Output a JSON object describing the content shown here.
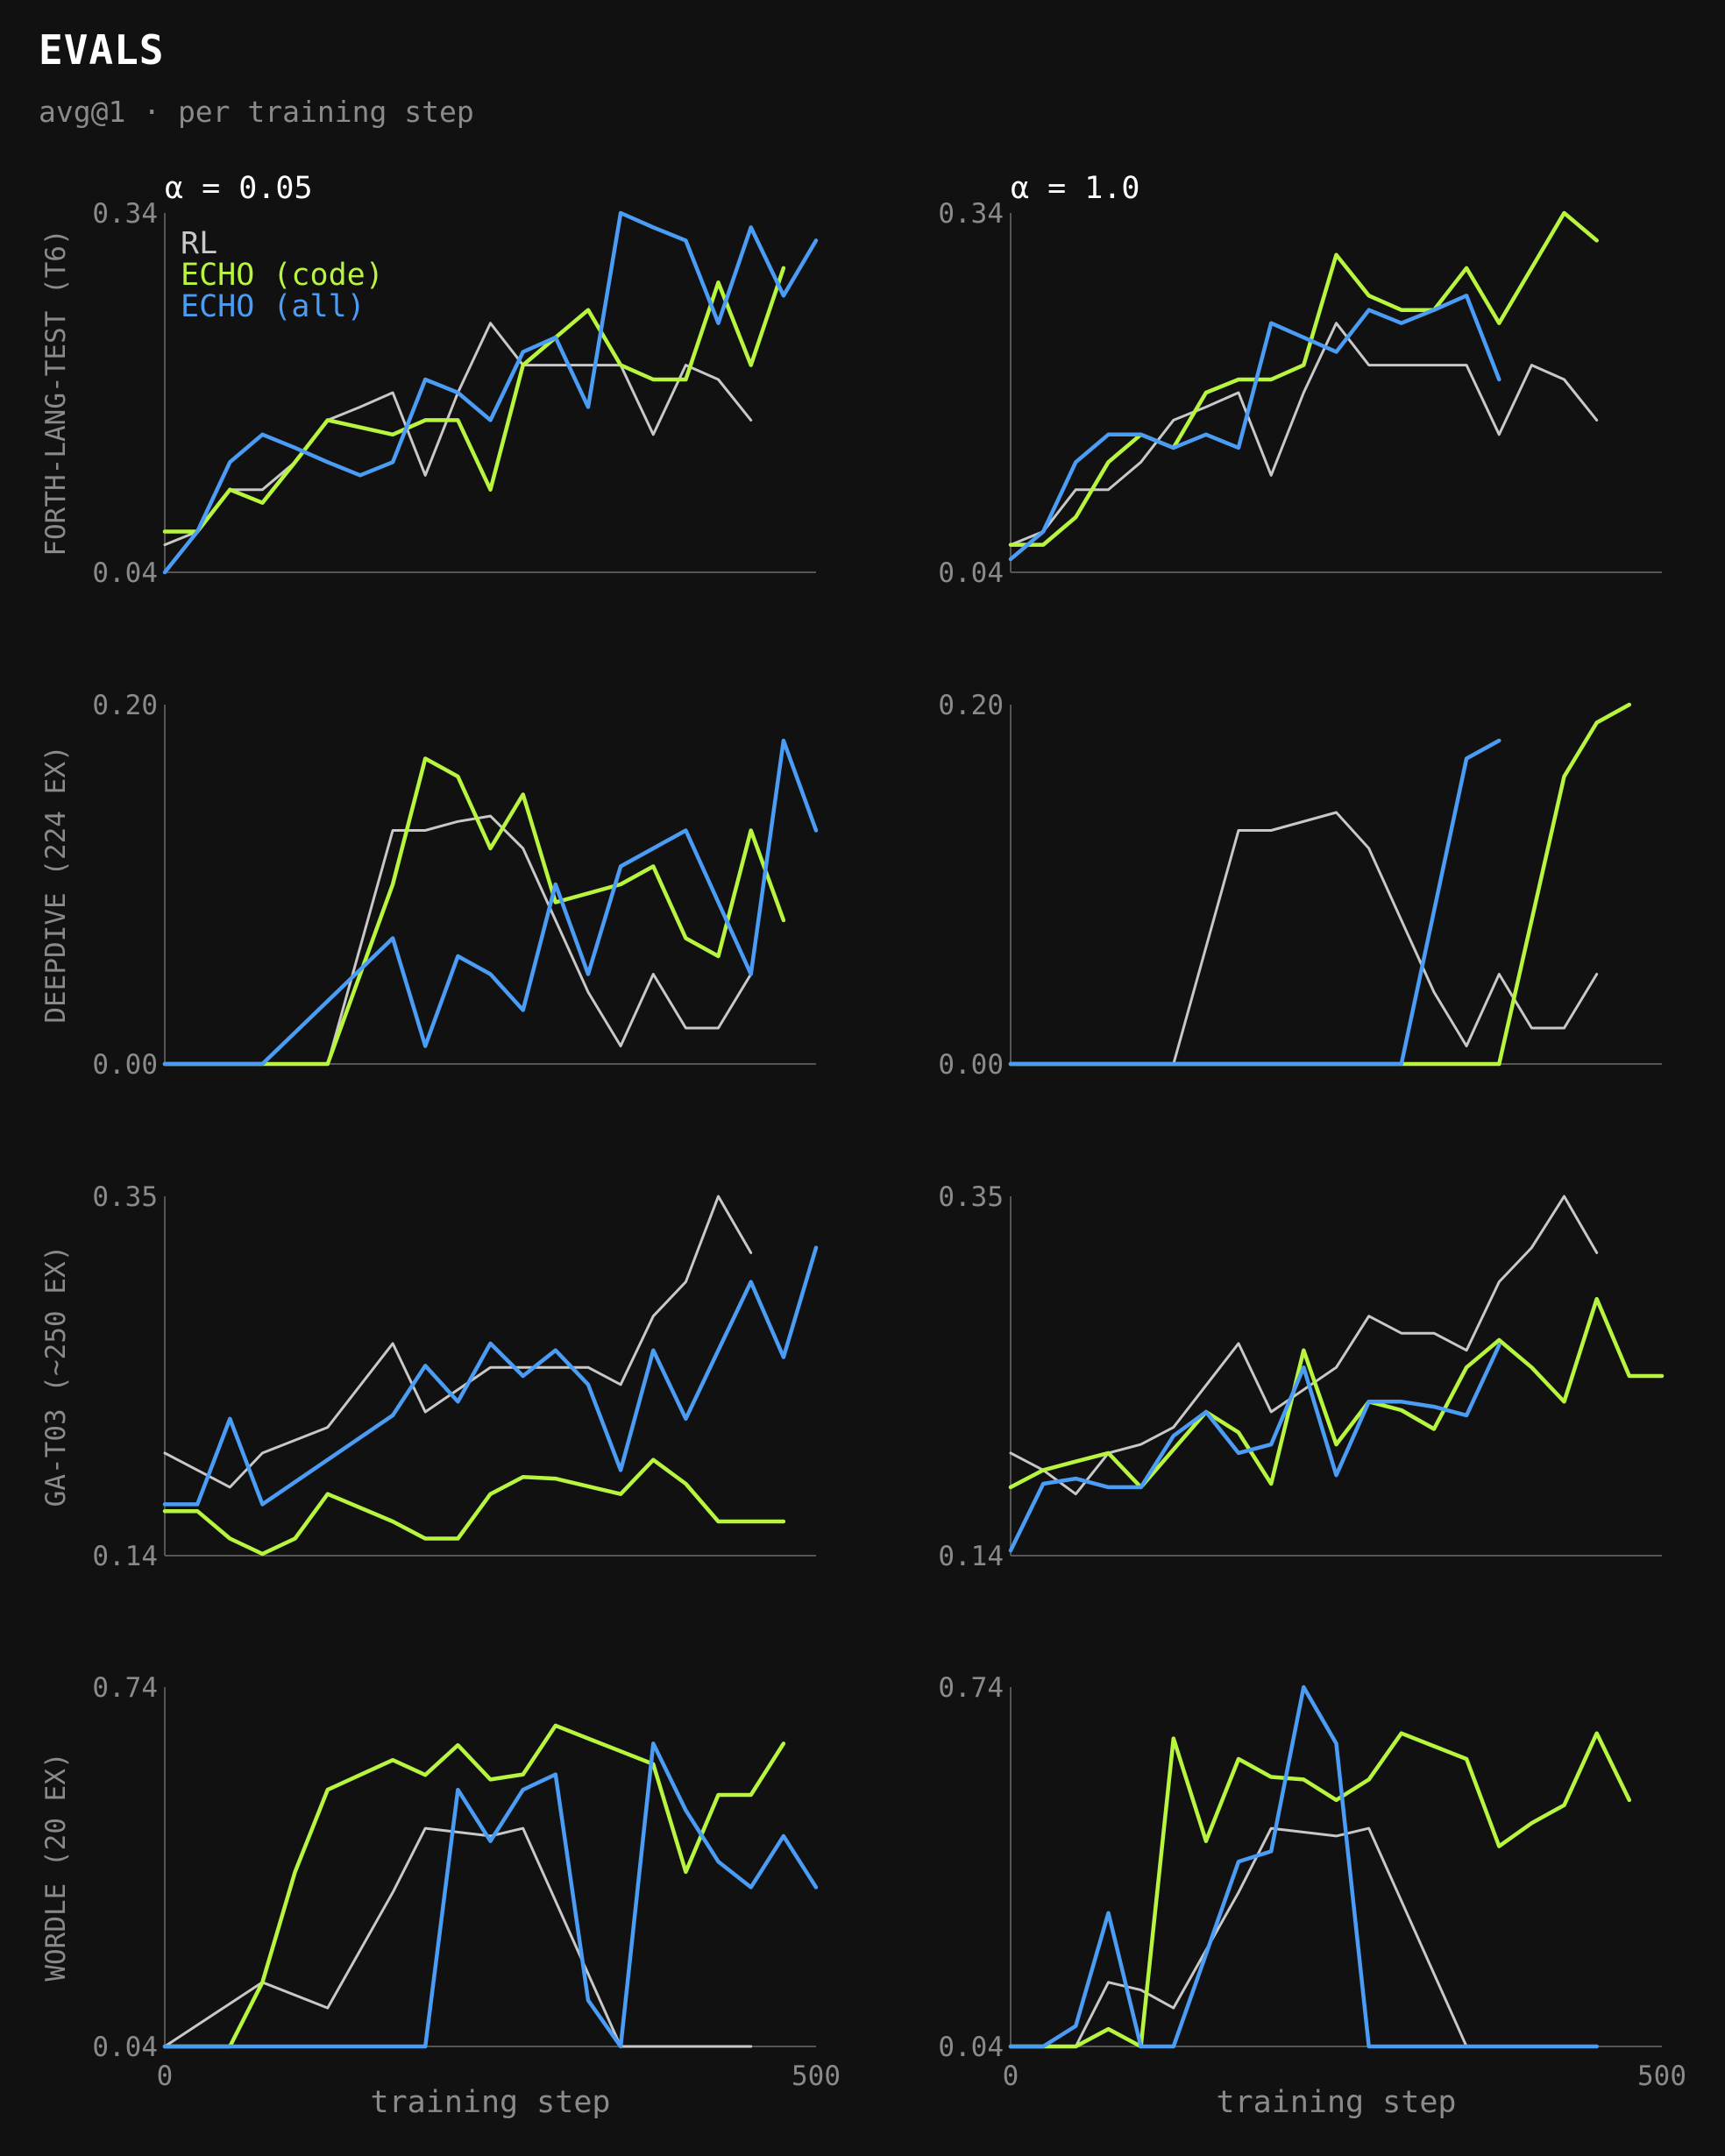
{
  "title": "EVALS",
  "subtitle": "avg@1 · per training step",
  "colors": {
    "background": "#111111",
    "RL": "#c8c8c8",
    "ECHO (code)": "#b8f53f",
    "ECHO (all)": "#4a9cf5",
    "axis": "#555555",
    "tick": "#8a8a8a",
    "header": "#ffffff"
  },
  "legend": {
    "placement": "top-left",
    "entries": [
      "RL",
      "ECHO (code)",
      "ECHO (all)"
    ]
  },
  "column_headers": [
    "α = 0.05",
    "α = 1.0"
  ],
  "row_labels": [
    "FORTH-LANG-TEST (T6)",
    "DEEPDIVE (224 EX)",
    "GA-T03 (~250 EX)",
    "WORDLE (20 EX)"
  ],
  "xlabel": "training step",
  "chart_data": [
    {
      "type": "line",
      "title": "α = 0.05",
      "ylabel": "FORTH-LANG-TEST (T6)",
      "xlabel": "",
      "xlim": [
        0,
        500
      ],
      "ylim": [
        0.04,
        0.34
      ],
      "yticks": [
        "0.04",
        "0.34"
      ],
      "grid": false,
      "series": [
        {
          "name": "RL",
          "x": [
            0,
            25,
            50,
            75,
            100,
            125,
            150,
            175,
            200,
            225,
            250,
            275,
            300,
            325,
            350,
            375,
            400,
            425,
            450
          ],
          "y": [
            0.063,
            0.074,
            0.109,
            0.109,
            0.132,
            0.167,
            0.178,
            0.19,
            0.121,
            0.19,
            0.248,
            0.213,
            0.213,
            0.213,
            0.213,
            0.155,
            0.213,
            0.201,
            0.167
          ]
        },
        {
          "name": "ECHO (code)",
          "x": [
            0,
            25,
            50,
            75,
            100,
            125,
            150,
            175,
            200,
            225,
            250,
            275,
            300,
            325,
            350,
            375,
            400,
            425,
            450,
            475
          ],
          "y": [
            0.074,
            0.074,
            0.109,
            0.098,
            0.132,
            0.167,
            0.161,
            0.155,
            0.167,
            0.167,
            0.109,
            0.213,
            0.236,
            0.259,
            0.213,
            0.201,
            0.201,
            0.282,
            0.213,
            0.294
          ]
        },
        {
          "name": "ECHO (all)",
          "x": [
            0,
            25,
            50,
            75,
            100,
            125,
            150,
            175,
            200,
            225,
            250,
            275,
            300,
            325,
            350,
            375,
            400,
            425,
            450,
            475,
            500
          ],
          "y": [
            0.04,
            0.074,
            0.132,
            0.155,
            0.144,
            0.132,
            0.121,
            0.132,
            0.201,
            0.19,
            0.167,
            0.224,
            0.236,
            0.178,
            0.34,
            0.328,
            0.317,
            0.248,
            0.328,
            0.271,
            0.317
          ]
        }
      ]
    },
    {
      "type": "line",
      "title": "α = 1.0",
      "ylabel": "",
      "xlabel": "",
      "xlim": [
        0,
        500
      ],
      "ylim": [
        0.04,
        0.34
      ],
      "yticks": [
        "0.04",
        "0.34"
      ],
      "grid": false,
      "series": [
        {
          "name": "RL",
          "x": [
            0,
            25,
            50,
            75,
            100,
            125,
            150,
            175,
            200,
            225,
            250,
            275,
            300,
            325,
            350,
            375,
            400,
            425,
            450
          ],
          "y": [
            0.063,
            0.074,
            0.109,
            0.109,
            0.132,
            0.167,
            0.178,
            0.19,
            0.121,
            0.19,
            0.248,
            0.213,
            0.213,
            0.213,
            0.213,
            0.155,
            0.213,
            0.201,
            0.167
          ]
        },
        {
          "name": "ECHO (code)",
          "x": [
            0,
            25,
            50,
            75,
            100,
            125,
            150,
            175,
            200,
            225,
            250,
            275,
            300,
            325,
            350,
            375,
            400,
            425,
            450
          ],
          "y": [
            0.063,
            0.063,
            0.086,
            0.132,
            0.155,
            0.144,
            0.19,
            0.201,
            0.201,
            0.213,
            0.305,
            0.271,
            0.259,
            0.259,
            0.294,
            0.248,
            0.294,
            0.34,
            0.317
          ]
        },
        {
          "name": "ECHO (all)",
          "x": [
            0,
            25,
            50,
            75,
            100,
            125,
            150,
            175,
            200,
            225,
            250,
            275,
            300,
            325,
            350,
            375
          ],
          "y": [
            0.051,
            0.074,
            0.132,
            0.155,
            0.155,
            0.144,
            0.155,
            0.144,
            0.248,
            0.236,
            0.224,
            0.259,
            0.248,
            0.259,
            0.271,
            0.201
          ]
        }
      ]
    },
    {
      "type": "line",
      "title": "",
      "ylabel": "DEEPDIVE (224 EX)",
      "xlabel": "",
      "xlim": [
        0,
        500
      ],
      "ylim": [
        0.0,
        0.2
      ],
      "yticks": [
        "0.00",
        "0.20"
      ],
      "grid": false,
      "series": [
        {
          "name": "RL",
          "x": [
            0,
            125,
            175,
            200,
            225,
            250,
            275,
            300,
            325,
            350,
            375,
            400,
            425,
            450
          ],
          "y": [
            0.0,
            0.0,
            0.13,
            0.13,
            0.135,
            0.138,
            0.12,
            0.08,
            0.04,
            0.01,
            0.05,
            0.02,
            0.02,
            0.05
          ]
        },
        {
          "name": "ECHO (code)",
          "x": [
            0,
            125,
            175,
            200,
            225,
            250,
            275,
            300,
            325,
            350,
            375,
            400,
            425,
            450,
            475
          ],
          "y": [
            0.0,
            0.0,
            0.1,
            0.17,
            0.16,
            0.12,
            0.15,
            0.09,
            0.095,
            0.1,
            0.11,
            0.07,
            0.06,
            0.13,
            0.08
          ]
        },
        {
          "name": "ECHO (all)",
          "x": [
            0,
            75,
            175,
            200,
            225,
            250,
            275,
            300,
            325,
            350,
            375,
            400,
            425,
            450,
            475,
            500
          ],
          "y": [
            0.0,
            0.0,
            0.07,
            0.01,
            0.06,
            0.05,
            0.03,
            0.1,
            0.05,
            0.11,
            0.12,
            0.13,
            0.09,
            0.05,
            0.18,
            0.13
          ]
        }
      ]
    },
    {
      "type": "line",
      "title": "",
      "ylabel": "",
      "xlabel": "",
      "xlim": [
        0,
        500
      ],
      "ylim": [
        0.0,
        0.2
      ],
      "yticks": [
        "0.00",
        "0.20"
      ],
      "grid": false,
      "series": [
        {
          "name": "RL",
          "x": [
            0,
            125,
            175,
            200,
            250,
            275,
            300,
            325,
            350,
            375,
            400,
            425,
            450
          ],
          "y": [
            0.0,
            0.0,
            0.13,
            0.13,
            0.14,
            0.12,
            0.08,
            0.04,
            0.01,
            0.05,
            0.02,
            0.02,
            0.05
          ]
        },
        {
          "name": "ECHO (code)",
          "x": [
            0,
            375,
            400,
            425,
            450,
            475
          ],
          "y": [
            0.0,
            0.0,
            0.08,
            0.16,
            0.19,
            0.2
          ]
        },
        {
          "name": "ECHO (all)",
          "x": [
            0,
            300,
            350,
            375
          ],
          "y": [
            0.0,
            0.0,
            0.17,
            0.18
          ]
        }
      ]
    },
    {
      "type": "line",
      "title": "",
      "ylabel": "GA-T03 (~250 EX)",
      "xlabel": "",
      "xlim": [
        0,
        500
      ],
      "ylim": [
        0.14,
        0.35
      ],
      "yticks": [
        "0.14",
        "0.35"
      ],
      "grid": false,
      "series": [
        {
          "name": "RL",
          "x": [
            0,
            50,
            75,
            125,
            175,
            200,
            250,
            275,
            300,
            325,
            350,
            375,
            400,
            425,
            450
          ],
          "y": [
            0.2,
            0.18,
            0.2,
            0.215,
            0.264,
            0.224,
            0.25,
            0.25,
            0.25,
            0.25,
            0.24,
            0.28,
            0.3,
            0.35,
            0.317
          ]
        },
        {
          "name": "ECHO (code)",
          "x": [
            0,
            25,
            50,
            75,
            100,
            125,
            175,
            200,
            225,
            250,
            275,
            300,
            350,
            375,
            400,
            425,
            450,
            475
          ],
          "y": [
            0.166,
            0.166,
            0.15,
            0.141,
            0.15,
            0.176,
            0.16,
            0.15,
            0.15,
            0.176,
            0.186,
            0.185,
            0.176,
            0.196,
            0.182,
            0.16,
            0.16,
            0.16
          ]
        },
        {
          "name": "ECHO (all)",
          "x": [
            0,
            25,
            50,
            75,
            175,
            200,
            225,
            250,
            275,
            300,
            325,
            350,
            375,
            400,
            425,
            450,
            475,
            500
          ],
          "y": [
            0.17,
            0.17,
            0.22,
            0.17,
            0.222,
            0.251,
            0.23,
            0.264,
            0.245,
            0.26,
            0.24,
            0.19,
            0.26,
            0.22,
            0.26,
            0.3,
            0.256,
            0.32
          ]
        }
      ]
    },
    {
      "type": "line",
      "title": "",
      "ylabel": "",
      "xlabel": "",
      "xlim": [
        0,
        500
      ],
      "ylim": [
        0.14,
        0.35
      ],
      "yticks": [
        "0.14",
        "0.35"
      ],
      "grid": false,
      "series": [
        {
          "name": "RL",
          "x": [
            0,
            25,
            50,
            75,
            100,
            125,
            175,
            200,
            250,
            275,
            300,
            325,
            350,
            375,
            400,
            425,
            450
          ],
          "y": [
            0.2,
            0.19,
            0.176,
            0.2,
            0.205,
            0.215,
            0.264,
            0.224,
            0.25,
            0.28,
            0.27,
            0.27,
            0.26,
            0.3,
            0.32,
            0.35,
            0.317
          ]
        },
        {
          "name": "ECHO (code)",
          "x": [
            0,
            25,
            50,
            75,
            100,
            150,
            175,
            200,
            225,
            250,
            275,
            300,
            325,
            350,
            375,
            400,
            425,
            450,
            475,
            500
          ],
          "y": [
            0.18,
            0.19,
            0.195,
            0.2,
            0.18,
            0.224,
            0.212,
            0.182,
            0.26,
            0.205,
            0.23,
            0.225,
            0.214,
            0.25,
            0.266,
            0.25,
            0.23,
            0.29,
            0.245,
            0.245
          ]
        },
        {
          "name": "ECHO (all)",
          "x": [
            0,
            25,
            50,
            75,
            100,
            125,
            150,
            175,
            200,
            225,
            250,
            275,
            300,
            325,
            350,
            375
          ],
          "y": [
            0.143,
            0.182,
            0.185,
            0.18,
            0.18,
            0.21,
            0.224,
            0.2,
            0.205,
            0.25,
            0.187,
            0.23,
            0.23,
            0.227,
            0.222,
            0.263
          ]
        }
      ]
    },
    {
      "type": "line",
      "title": "",
      "ylabel": "WORDLE (20 EX)",
      "xlabel": "training step",
      "xlim": [
        0,
        500
      ],
      "ylim": [
        0.04,
        0.74
      ],
      "yticks": [
        "0.04",
        "0.74"
      ],
      "xticks": [
        "0",
        "500"
      ],
      "grid": false,
      "series": [
        {
          "name": "RL",
          "x": [
            0,
            75,
            125,
            175,
            200,
            250,
            275,
            350,
            450
          ],
          "y": [
            0.04,
            0.165,
            0.115,
            0.34,
            0.465,
            0.45,
            0.465,
            0.04,
            0.04
          ]
        },
        {
          "name": "ECHO (code)",
          "x": [
            0,
            50,
            75,
            100,
            125,
            175,
            200,
            225,
            250,
            275,
            300,
            325,
            350,
            375,
            400,
            425,
            450,
            475
          ],
          "y": [
            0.04,
            0.04,
            0.165,
            0.38,
            0.54,
            0.598,
            0.569,
            0.627,
            0.56,
            0.57,
            0.665,
            0.64,
            0.615,
            0.59,
            0.38,
            0.53,
            0.53,
            0.63
          ]
        },
        {
          "name": "ECHO (all)",
          "x": [
            0,
            200,
            225,
            250,
            275,
            300,
            325,
            350,
            375,
            400,
            425,
            450,
            475,
            500
          ],
          "y": [
            0.04,
            0.04,
            0.54,
            0.44,
            0.54,
            0.57,
            0.13,
            0.04,
            0.63,
            0.5,
            0.4,
            0.35,
            0.45,
            0.35
          ]
        }
      ]
    },
    {
      "type": "line",
      "title": "",
      "ylabel": "",
      "xlabel": "training step",
      "xlim": [
        0,
        500
      ],
      "ylim": [
        0.04,
        0.74
      ],
      "yticks": [
        "0.04",
        "0.74"
      ],
      "xticks": [
        "0",
        "500"
      ],
      "grid": false,
      "series": [
        {
          "name": "RL",
          "x": [
            0,
            50,
            75,
            100,
            125,
            175,
            200,
            250,
            275,
            350,
            450
          ],
          "y": [
            0.04,
            0.04,
            0.165,
            0.15,
            0.115,
            0.34,
            0.465,
            0.45,
            0.465,
            0.04,
            0.04
          ]
        },
        {
          "name": "ECHO (code)",
          "x": [
            0,
            50,
            75,
            100,
            125,
            150,
            175,
            200,
            225,
            250,
            275,
            300,
            325,
            350,
            375,
            400,
            425,
            450,
            475
          ],
          "y": [
            0.04,
            0.04,
            0.074,
            0.04,
            0.64,
            0.44,
            0.6,
            0.565,
            0.56,
            0.52,
            0.56,
            0.65,
            0.625,
            0.6,
            0.43,
            0.475,
            0.51,
            0.65,
            0.52
          ]
        },
        {
          "name": "ECHO (all)",
          "x": [
            0,
            25,
            50,
            75,
            100,
            125,
            150,
            175,
            200,
            225,
            250,
            275,
            300,
            350,
            375,
            400,
            450
          ],
          "y": [
            0.04,
            0.04,
            0.08,
            0.3,
            0.04,
            0.04,
            0.22,
            0.4,
            0.42,
            0.74,
            0.63,
            0.04,
            0.04,
            0.04,
            0.04,
            0.04,
            0.04
          ]
        }
      ]
    }
  ]
}
